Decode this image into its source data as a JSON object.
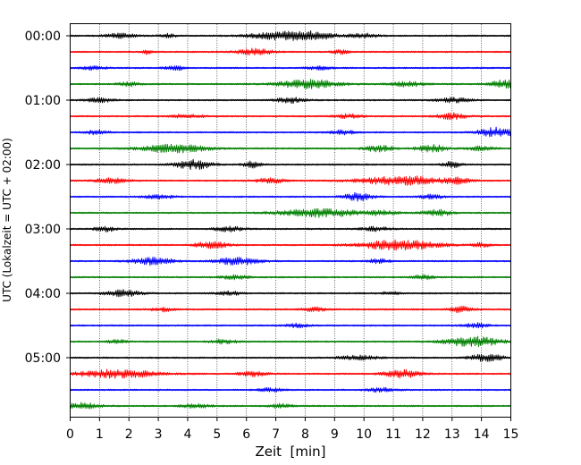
{
  "chart_data": {
    "type": "line",
    "title": "",
    "xlabel": "Zeit  [min]",
    "ylabel": "UTC (Lokalzeit = UTC + 02:00)",
    "xlim": [
      0,
      15
    ],
    "x_ticks": [
      0,
      1,
      2,
      3,
      4,
      5,
      6,
      7,
      8,
      9,
      10,
      11,
      12,
      13,
      14,
      15
    ],
    "x_tick_labels": [
      "0",
      "1",
      "2",
      "3",
      "4",
      "5",
      "6",
      "7",
      "8",
      "9",
      "10",
      "11",
      "12",
      "13",
      "14",
      "15"
    ],
    "y_tick_labels": [
      "00:00",
      "01:00",
      "02:00",
      "03:00",
      "04:00",
      "05:00"
    ],
    "grid": "vertical dotted",
    "trace_interval_minutes": 15,
    "trace_colors": [
      "#000000",
      "#ff0000",
      "#0000ff",
      "#008000"
    ],
    "traces": [
      {
        "start": "00:00",
        "bursts": [
          [
            1.7,
            0.5,
            1.2
          ],
          [
            3.3,
            0.3,
            1.0
          ],
          [
            7.0,
            1.0,
            1.6
          ],
          [
            8.2,
            0.8,
            2.0
          ],
          [
            10.0,
            0.5,
            1.0
          ]
        ]
      },
      {
        "start": "00:15",
        "bursts": [
          [
            2.6,
            0.2,
            1.0
          ],
          [
            6.3,
            0.6,
            1.5
          ],
          [
            9.2,
            0.3,
            1.0
          ]
        ]
      },
      {
        "start": "00:30",
        "bursts": [
          [
            0.8,
            0.4,
            1.0
          ],
          [
            3.6,
            0.4,
            1.0
          ],
          [
            8.5,
            0.4,
            1.0
          ]
        ]
      },
      {
        "start": "00:45",
        "bursts": [
          [
            2.0,
            0.4,
            1.0
          ],
          [
            8.1,
            1.0,
            2.2
          ],
          [
            11.5,
            0.6,
            1.2
          ],
          [
            14.8,
            0.5,
            2.0
          ]
        ]
      },
      {
        "start": "01:00",
        "bursts": [
          [
            1.0,
            0.5,
            1.0
          ],
          [
            7.5,
            0.5,
            1.3
          ],
          [
            13.0,
            0.6,
            1.2
          ]
        ]
      },
      {
        "start": "01:15",
        "bursts": [
          [
            4.0,
            0.5,
            1.0
          ],
          [
            9.5,
            0.5,
            1.0
          ],
          [
            13.0,
            0.5,
            1.5
          ]
        ]
      },
      {
        "start": "01:30",
        "bursts": [
          [
            0.9,
            0.4,
            1.0
          ],
          [
            9.3,
            0.5,
            1.0
          ],
          [
            14.5,
            0.6,
            2.5
          ]
        ]
      },
      {
        "start": "01:45",
        "bursts": [
          [
            3.6,
            1.2,
            2.0
          ],
          [
            10.5,
            0.5,
            1.5
          ],
          [
            12.3,
            0.5,
            1.8
          ],
          [
            14.0,
            0.5,
            1.0
          ]
        ]
      },
      {
        "start": "02:00",
        "bursts": [
          [
            4.2,
            0.6,
            2.4
          ],
          [
            6.2,
            0.3,
            1.5
          ],
          [
            13.0,
            0.3,
            1.5
          ]
        ]
      },
      {
        "start": "02:15",
        "bursts": [
          [
            1.4,
            0.6,
            1.2
          ],
          [
            6.8,
            0.5,
            1.2
          ],
          [
            11.3,
            1.4,
            2.3
          ],
          [
            13.2,
            0.4,
            1.2
          ]
        ]
      },
      {
        "start": "02:30",
        "bursts": [
          [
            3.0,
            0.5,
            1.0
          ],
          [
            9.8,
            0.5,
            2.0
          ],
          [
            12.3,
            0.4,
            1.0
          ]
        ]
      },
      {
        "start": "02:45",
        "bursts": [
          [
            8.5,
            1.4,
            2.0
          ],
          [
            10.6,
            0.5,
            1.0
          ],
          [
            12.5,
            0.5,
            1.5
          ]
        ]
      },
      {
        "start": "03:00",
        "bursts": [
          [
            1.2,
            0.4,
            1.2
          ],
          [
            5.4,
            0.5,
            1.2
          ],
          [
            10.4,
            0.5,
            1.0
          ]
        ]
      },
      {
        "start": "03:15",
        "bursts": [
          [
            4.8,
            0.6,
            1.6
          ],
          [
            11.2,
            1.3,
            2.6
          ],
          [
            14.0,
            0.3,
            1.0
          ]
        ]
      },
      {
        "start": "03:30",
        "bursts": [
          [
            2.8,
            0.7,
            1.8
          ],
          [
            5.7,
            0.7,
            2.0
          ],
          [
            10.5,
            0.4,
            1.0
          ]
        ]
      },
      {
        "start": "03:45",
        "bursts": [
          [
            5.6,
            0.5,
            1.0
          ],
          [
            12.0,
            0.4,
            1.0
          ]
        ]
      },
      {
        "start": "04:00",
        "bursts": [
          [
            1.8,
            0.6,
            1.6
          ],
          [
            5.4,
            0.4,
            1.0
          ],
          [
            10.9,
            0.3,
            1.0
          ]
        ]
      },
      {
        "start": "04:15",
        "bursts": [
          [
            3.1,
            0.4,
            1.0
          ],
          [
            8.3,
            0.4,
            1.0
          ],
          [
            13.3,
            0.4,
            1.5
          ]
        ]
      },
      {
        "start": "04:30",
        "bursts": [
          [
            7.7,
            0.4,
            1.0
          ],
          [
            13.8,
            0.4,
            1.2
          ]
        ]
      },
      {
        "start": "04:45",
        "bursts": [
          [
            1.6,
            0.3,
            1.0
          ],
          [
            5.2,
            0.5,
            1.0
          ],
          [
            13.7,
            0.9,
            2.6
          ]
        ]
      },
      {
        "start": "05:00",
        "bursts": [
          [
            9.8,
            0.7,
            1.0
          ],
          [
            14.2,
            0.6,
            1.8
          ]
        ]
      },
      {
        "start": "05:15",
        "bursts": [
          [
            1.6,
            1.4,
            2.0
          ],
          [
            6.2,
            0.5,
            1.2
          ],
          [
            11.3,
            0.6,
            2.0
          ]
        ]
      },
      {
        "start": "05:30",
        "bursts": [
          [
            6.8,
            0.4,
            1.0
          ],
          [
            10.6,
            0.5,
            1.0
          ]
        ]
      },
      {
        "start": "05:45",
        "bursts": [
          [
            0.4,
            0.6,
            1.5
          ],
          [
            4.3,
            0.5,
            1.0
          ],
          [
            7.2,
            0.4,
            1.0
          ]
        ]
      }
    ]
  }
}
